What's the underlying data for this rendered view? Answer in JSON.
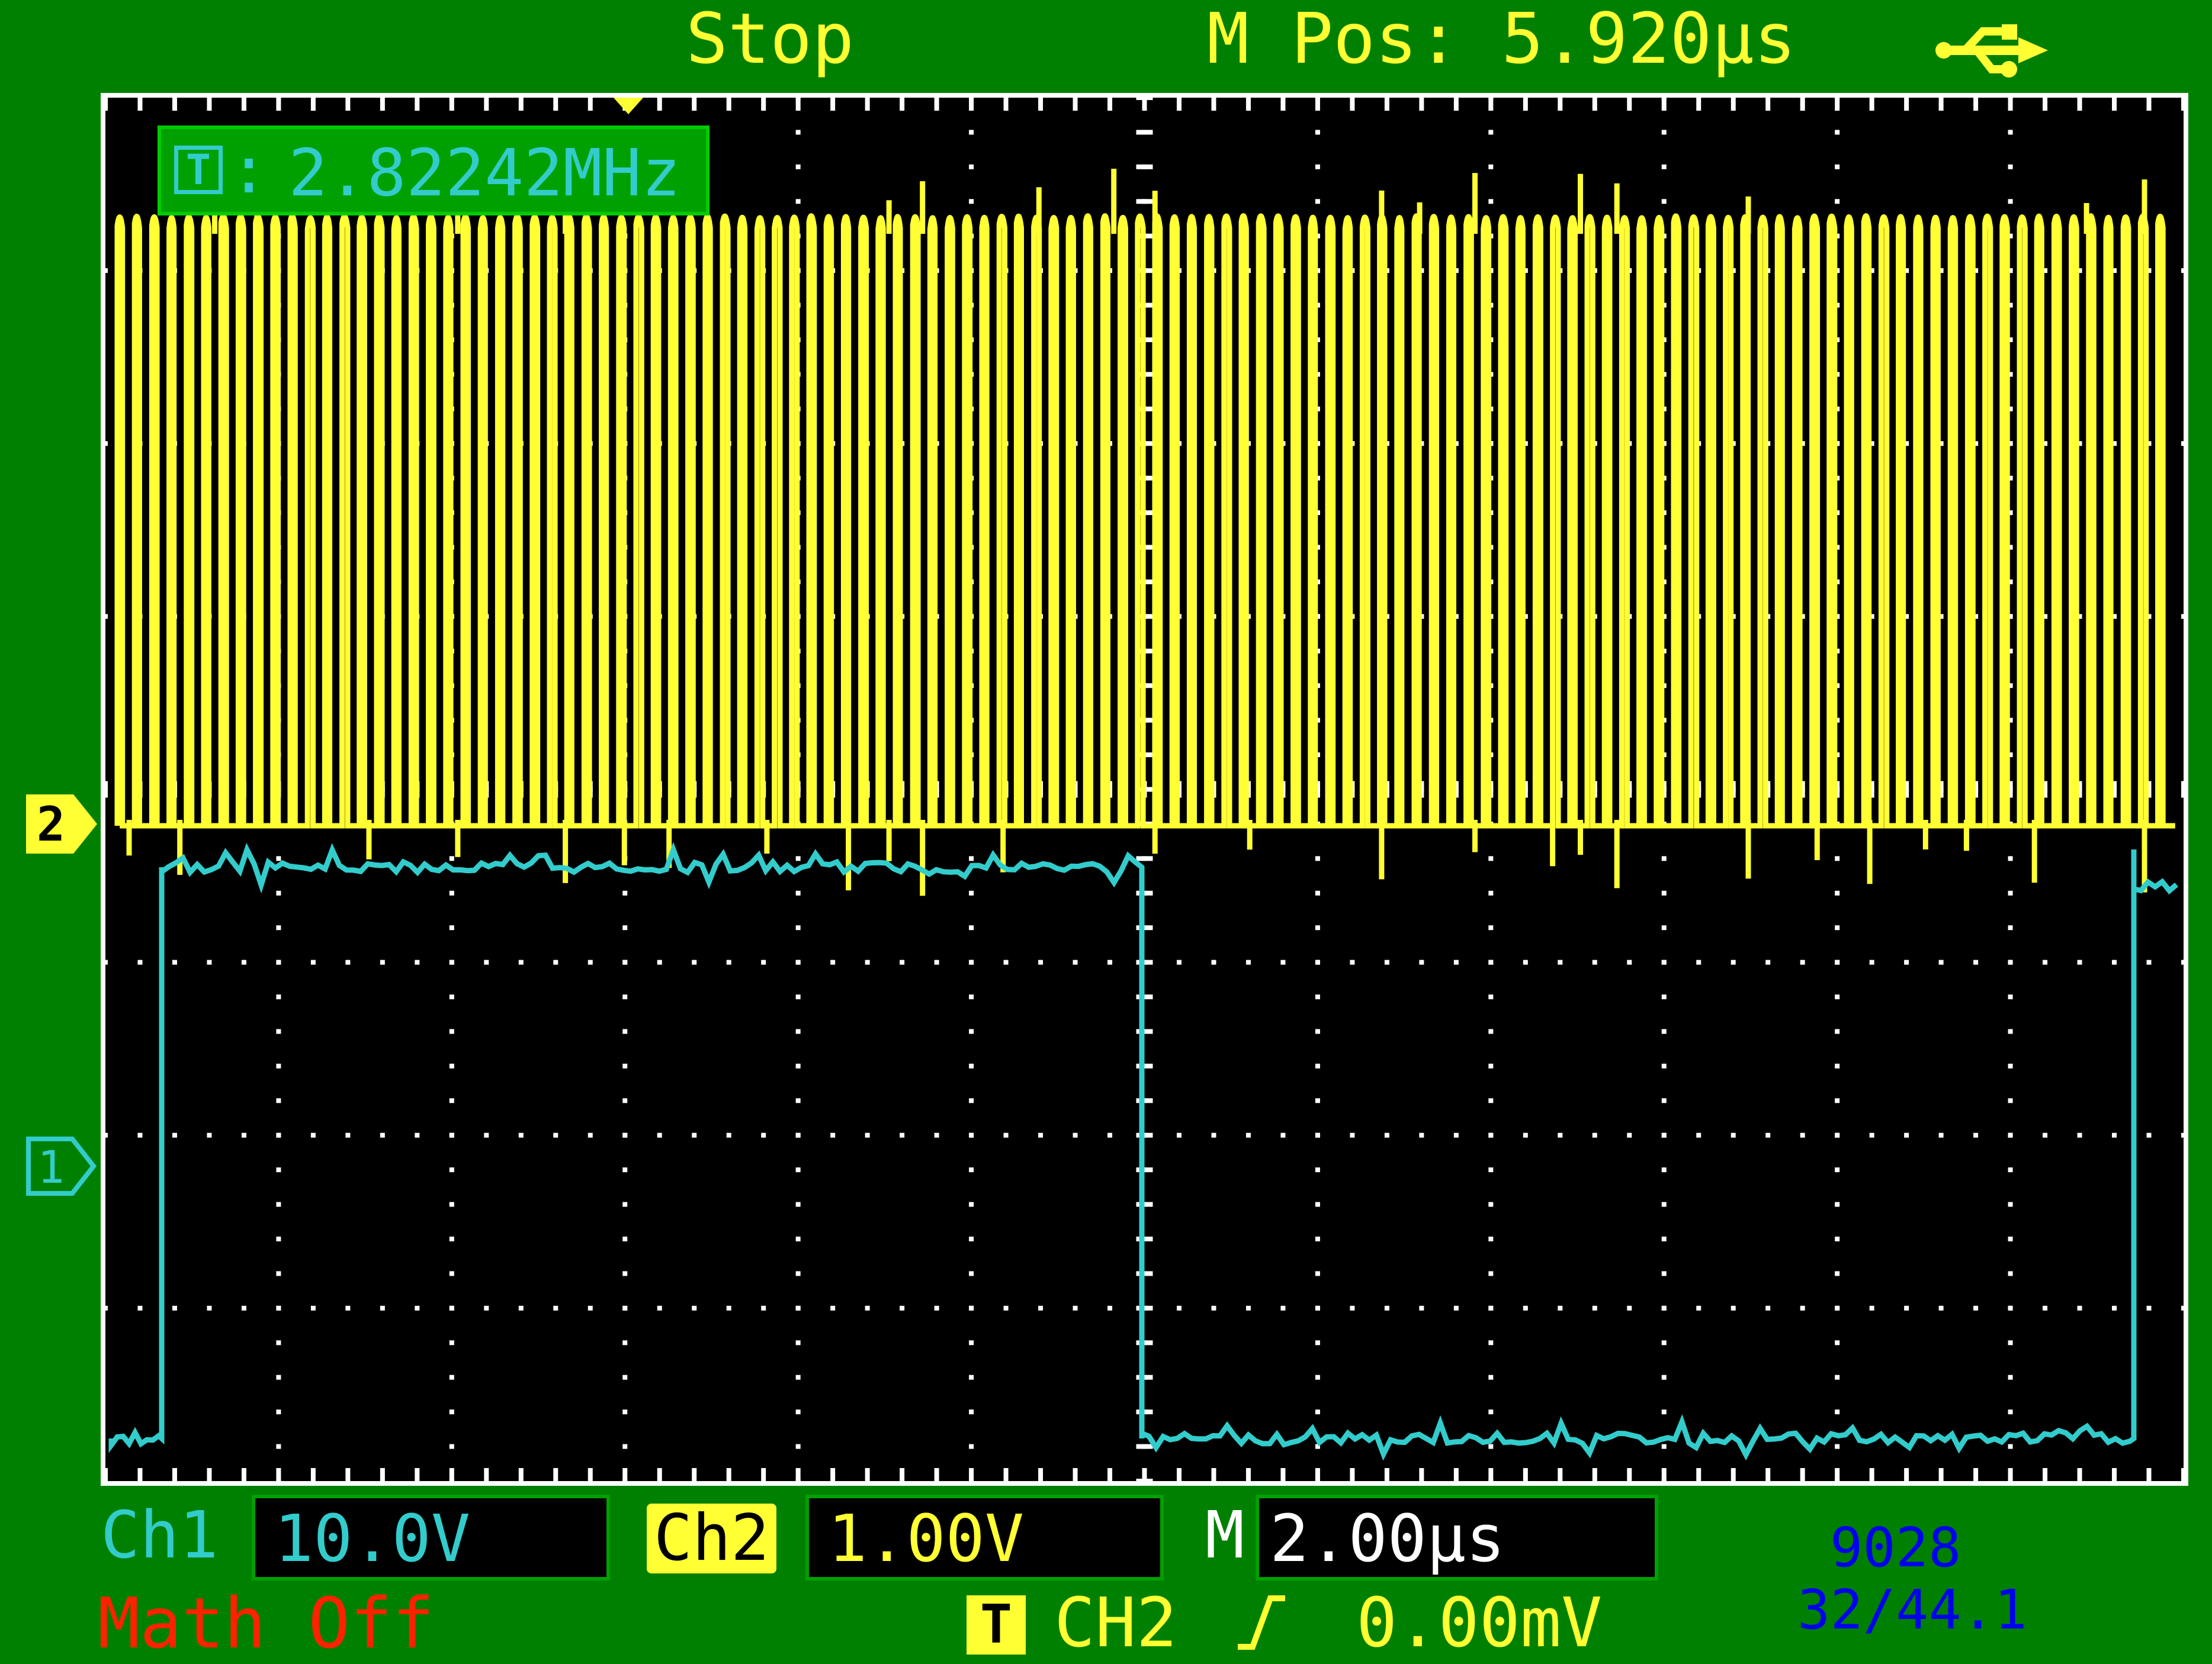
{
  "status": {
    "run_state": "Stop",
    "m_pos": "M Pos: 5.920µs"
  },
  "icons": {
    "usb": "usb-icon",
    "trigger_marker": "trigger-position-marker-icon",
    "ch1_marker": "ch1-ground-marker-icon",
    "ch2_marker": "ch2-ground-marker-icon",
    "trigger_t": "trigger-t-icon",
    "rising_edge": "rising-edge-icon",
    "counter_t": "counter-t-icon"
  },
  "frequency": {
    "icon_letter": "T",
    "colon": ":",
    "value": "2.82242MHz"
  },
  "markers": {
    "ch1": "1",
    "ch2": "2"
  },
  "channels": {
    "ch1": {
      "label": "Ch1",
      "scale": "10.0V",
      "color": "#33cccc"
    },
    "ch2": {
      "label": "Ch2",
      "scale": "1.00V",
      "color": "#ffff33"
    }
  },
  "timebase": {
    "label": "M",
    "scale": "2.00µs"
  },
  "math": {
    "label": "Math Off"
  },
  "trigger": {
    "icon_letter": "T",
    "source": "CH2",
    "level": "0.00mV"
  },
  "counter": {
    "line1": "9028",
    "line2": "32/44.1"
  },
  "colors": {
    "bezel": "#008000",
    "screen": "#000000",
    "grid": "#ffffff",
    "math": "#ff2200",
    "counter": "#0000ee"
  }
}
